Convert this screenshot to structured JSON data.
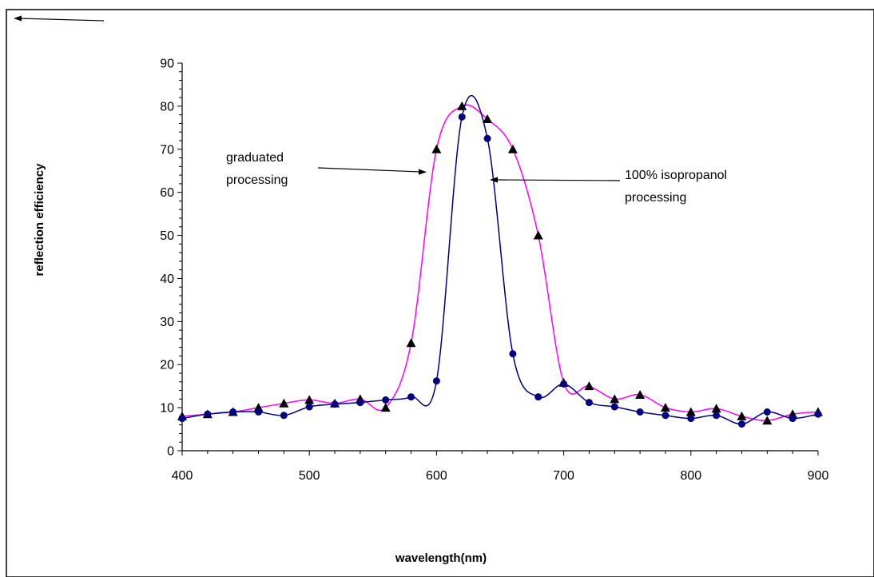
{
  "chart_data": {
    "type": "line",
    "title": "",
    "xlabel": "wavelength(nm)",
    "ylabel": "reflection efficiency",
    "xlim": [
      400,
      900
    ],
    "ylim": [
      0,
      90
    ],
    "x_ticks": [
      "400",
      "500",
      "600",
      "700",
      "800",
      "900"
    ],
    "y_ticks": [
      "0",
      "10",
      "20",
      "30",
      "40",
      "50",
      "60",
      "70",
      "80",
      "90"
    ],
    "grid": false,
    "legend": "none",
    "x": [
      400,
      420,
      440,
      460,
      480,
      500,
      520,
      540,
      560,
      580,
      600,
      620,
      640,
      660,
      680,
      700,
      720,
      740,
      760,
      780,
      800,
      820,
      840,
      860,
      880,
      900
    ],
    "series": [
      {
        "marker": "triangle",
        "color": "#ff00ff",
        "values": [
          8,
          8.5,
          9,
          10,
          11,
          11.8,
          11,
          12,
          10,
          25,
          70,
          80,
          77,
          70,
          50,
          15.8,
          15,
          12,
          13,
          10,
          9,
          9.8,
          8,
          7,
          8.5,
          9
        ]
      },
      {
        "marker": "circle",
        "color": "#000080",
        "values": [
          7.5,
          8.5,
          9,
          9,
          8.2,
          10.2,
          10.8,
          11.2,
          11.8,
          12.5,
          16.2,
          77.5,
          72.5,
          22.5,
          12.5,
          15.5,
          11.2,
          10.2,
          9,
          8.2,
          7.5,
          8.2,
          6.2,
          9,
          7.5,
          8.5
        ]
      }
    ],
    "annotations": {
      "graduated": [
        "graduated",
        "processing"
      ],
      "isopropanol": [
        "100% isopropanol",
        "processing"
      ]
    }
  }
}
